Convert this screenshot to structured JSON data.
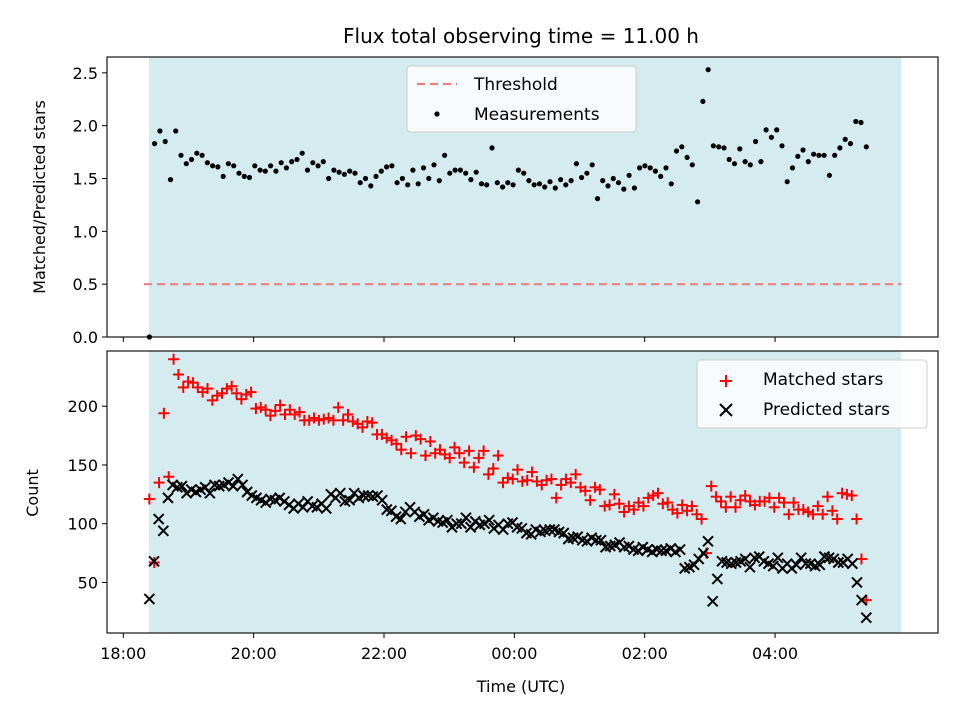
{
  "chart_data": [
    {
      "type": "scatter",
      "title": "Flux total observing time = 11.00 h",
      "xlabel": "",
      "ylabel": "Matched/Predicted stars",
      "ylim": [
        0,
        2.65
      ],
      "yticks": [
        "0.0",
        "0.5",
        "1.0",
        "1.5",
        "2.0",
        "2.5"
      ],
      "shaded_region": {
        "x_start": "18:23",
        "x_end": "05:23",
        "color": "#d4ebf0"
      },
      "threshold": {
        "name": "Threshold",
        "value": 0.5,
        "color": "#f08080"
      },
      "legend_position": "top-center",
      "series": [
        {
          "name": "Measurements",
          "color": "#000000",
          "marker": "dot",
          "values": [
            0.0,
            1.83,
            1.95,
            1.85,
            1.49,
            1.95,
            1.72,
            1.64,
            1.68,
            1.74,
            1.72,
            1.65,
            1.62,
            1.61,
            1.52,
            1.64,
            1.62,
            1.55,
            1.52,
            1.51,
            1.62,
            1.58,
            1.57,
            1.62,
            1.57,
            1.65,
            1.6,
            1.66,
            1.68,
            1.74,
            1.58,
            1.65,
            1.62,
            1.66,
            1.5,
            1.58,
            1.56,
            1.54,
            1.57,
            1.55,
            1.46,
            1.5,
            1.43,
            1.52,
            1.57,
            1.61,
            1.62,
            1.46,
            1.5,
            1.44,
            1.58,
            1.45,
            1.6,
            1.5,
            1.63,
            1.48,
            1.72,
            1.55,
            1.58,
            1.58,
            1.55,
            1.49,
            1.56,
            1.45,
            1.44,
            1.79,
            1.46,
            1.42,
            1.46,
            1.44,
            1.58,
            1.55,
            1.48,
            1.44,
            1.45,
            1.42,
            1.47,
            1.41,
            1.49,
            1.44,
            1.48,
            1.64,
            1.51,
            1.55,
            1.63,
            1.31,
            1.48,
            1.43,
            1.5,
            1.46,
            1.4,
            1.53,
            1.41,
            1.6,
            1.62,
            1.6,
            1.57,
            1.52,
            1.6,
            1.45,
            1.76,
            1.8,
            1.7,
            1.63,
            1.28,
            2.23,
            2.53,
            1.81,
            1.8,
            1.79,
            1.68,
            1.64,
            1.78,
            1.66,
            1.63,
            1.85,
            1.66,
            1.96,
            1.89,
            1.96,
            1.81,
            1.47,
            1.6,
            1.71,
            1.77,
            1.66,
            1.73,
            1.72,
            1.72,
            1.53,
            1.72,
            1.79,
            1.87,
            1.83,
            2.04,
            2.03,
            1.8
          ]
        }
      ]
    },
    {
      "type": "scatter",
      "xlabel": "Time (UTC)",
      "ylabel": "Count",
      "ylim": [
        7,
        247
      ],
      "yticks": [
        "50",
        "100",
        "150",
        "200"
      ],
      "xticks": [
        "18:00",
        "20:00",
        "22:00",
        "00:00",
        "02:00",
        "04:00"
      ],
      "xrange_hours_after_18": [
        -0.25,
        12.5
      ],
      "legend_position": "top-right",
      "series": [
        {
          "name": "Matched stars",
          "color": "#ff0000",
          "marker": "plus",
          "values": [
            121,
            67,
            135,
            194,
            140,
            240,
            227,
            216,
            221,
            220,
            216,
            212,
            215,
            205,
            209,
            211,
            215,
            217,
            211,
            206,
            210,
            212,
            198,
            199,
            197,
            192,
            196,
            201,
            193,
            197,
            193,
            195,
            188,
            188,
            190,
            188,
            189,
            190,
            188,
            199,
            188,
            193,
            187,
            185,
            182,
            187,
            186,
            176,
            176,
            173,
            171,
            168,
            163,
            174,
            160,
            175,
            172,
            158,
            170,
            160,
            163,
            159,
            156,
            165,
            160,
            152,
            162,
            148,
            156,
            162,
            142,
            147,
            158,
            135,
            139,
            138,
            146,
            136,
            137,
            144,
            136,
            133,
            137,
            138,
            122,
            133,
            138,
            135,
            142,
            131,
            128,
            120,
            131,
            129,
            115,
            116,
            125,
            117,
            110,
            115,
            112,
            118,
            115,
            122,
            124,
            126,
            117,
            118,
            112,
            109,
            116,
            111,
            115,
            108,
            104,
            75,
            132,
            123,
            119,
            114,
            123,
            114,
            120,
            124,
            119,
            116,
            119,
            119,
            122,
            114,
            122,
            118,
            108,
            118,
            112,
            112,
            110,
            108,
            115,
            108,
            123,
            111,
            104,
            126,
            125,
            124,
            104,
            70,
            35
          ]
        },
        {
          "name": "Predicted stars",
          "color": "#000000",
          "marker": "x",
          "values": [
            36,
            68,
            104,
            94,
            122,
            133,
            131,
            132,
            126,
            129,
            127,
            129,
            131,
            126,
            133,
            132,
            133,
            135,
            132,
            138,
            133,
            127,
            124,
            122,
            120,
            118,
            121,
            120,
            122,
            119,
            116,
            113,
            117,
            114,
            119,
            115,
            114,
            117,
            113,
            125,
            122,
            126,
            119,
            120,
            126,
            122,
            124,
            124,
            123,
            124,
            120,
            112,
            111,
            106,
            104,
            110,
            114,
            110,
            106,
            108,
            103,
            105,
            102,
            101,
            103,
            97,
            100,
            100,
            105,
            97,
            102,
            99,
            100,
            103,
            96,
            99,
            95,
            100,
            101,
            97,
            96,
            92,
            91,
            95,
            93,
            94,
            95,
            95,
            93,
            92,
            87,
            88,
            89,
            86,
            85,
            88,
            86,
            86,
            80,
            81,
            82,
            84,
            80,
            81,
            78,
            77,
            80,
            78,
            76,
            78,
            77,
            77,
            79,
            76,
            78,
            62,
            63,
            65,
            70,
            75,
            85,
            34,
            53,
            68,
            67,
            66,
            67,
            68,
            70,
            63,
            71,
            72,
            68,
            66,
            64,
            71,
            62,
            66,
            62,
            65,
            71,
            66,
            66,
            64,
            65,
            72,
            71,
            70,
            67,
            67,
            70,
            66,
            50,
            35,
            20
          ]
        }
      ]
    }
  ]
}
